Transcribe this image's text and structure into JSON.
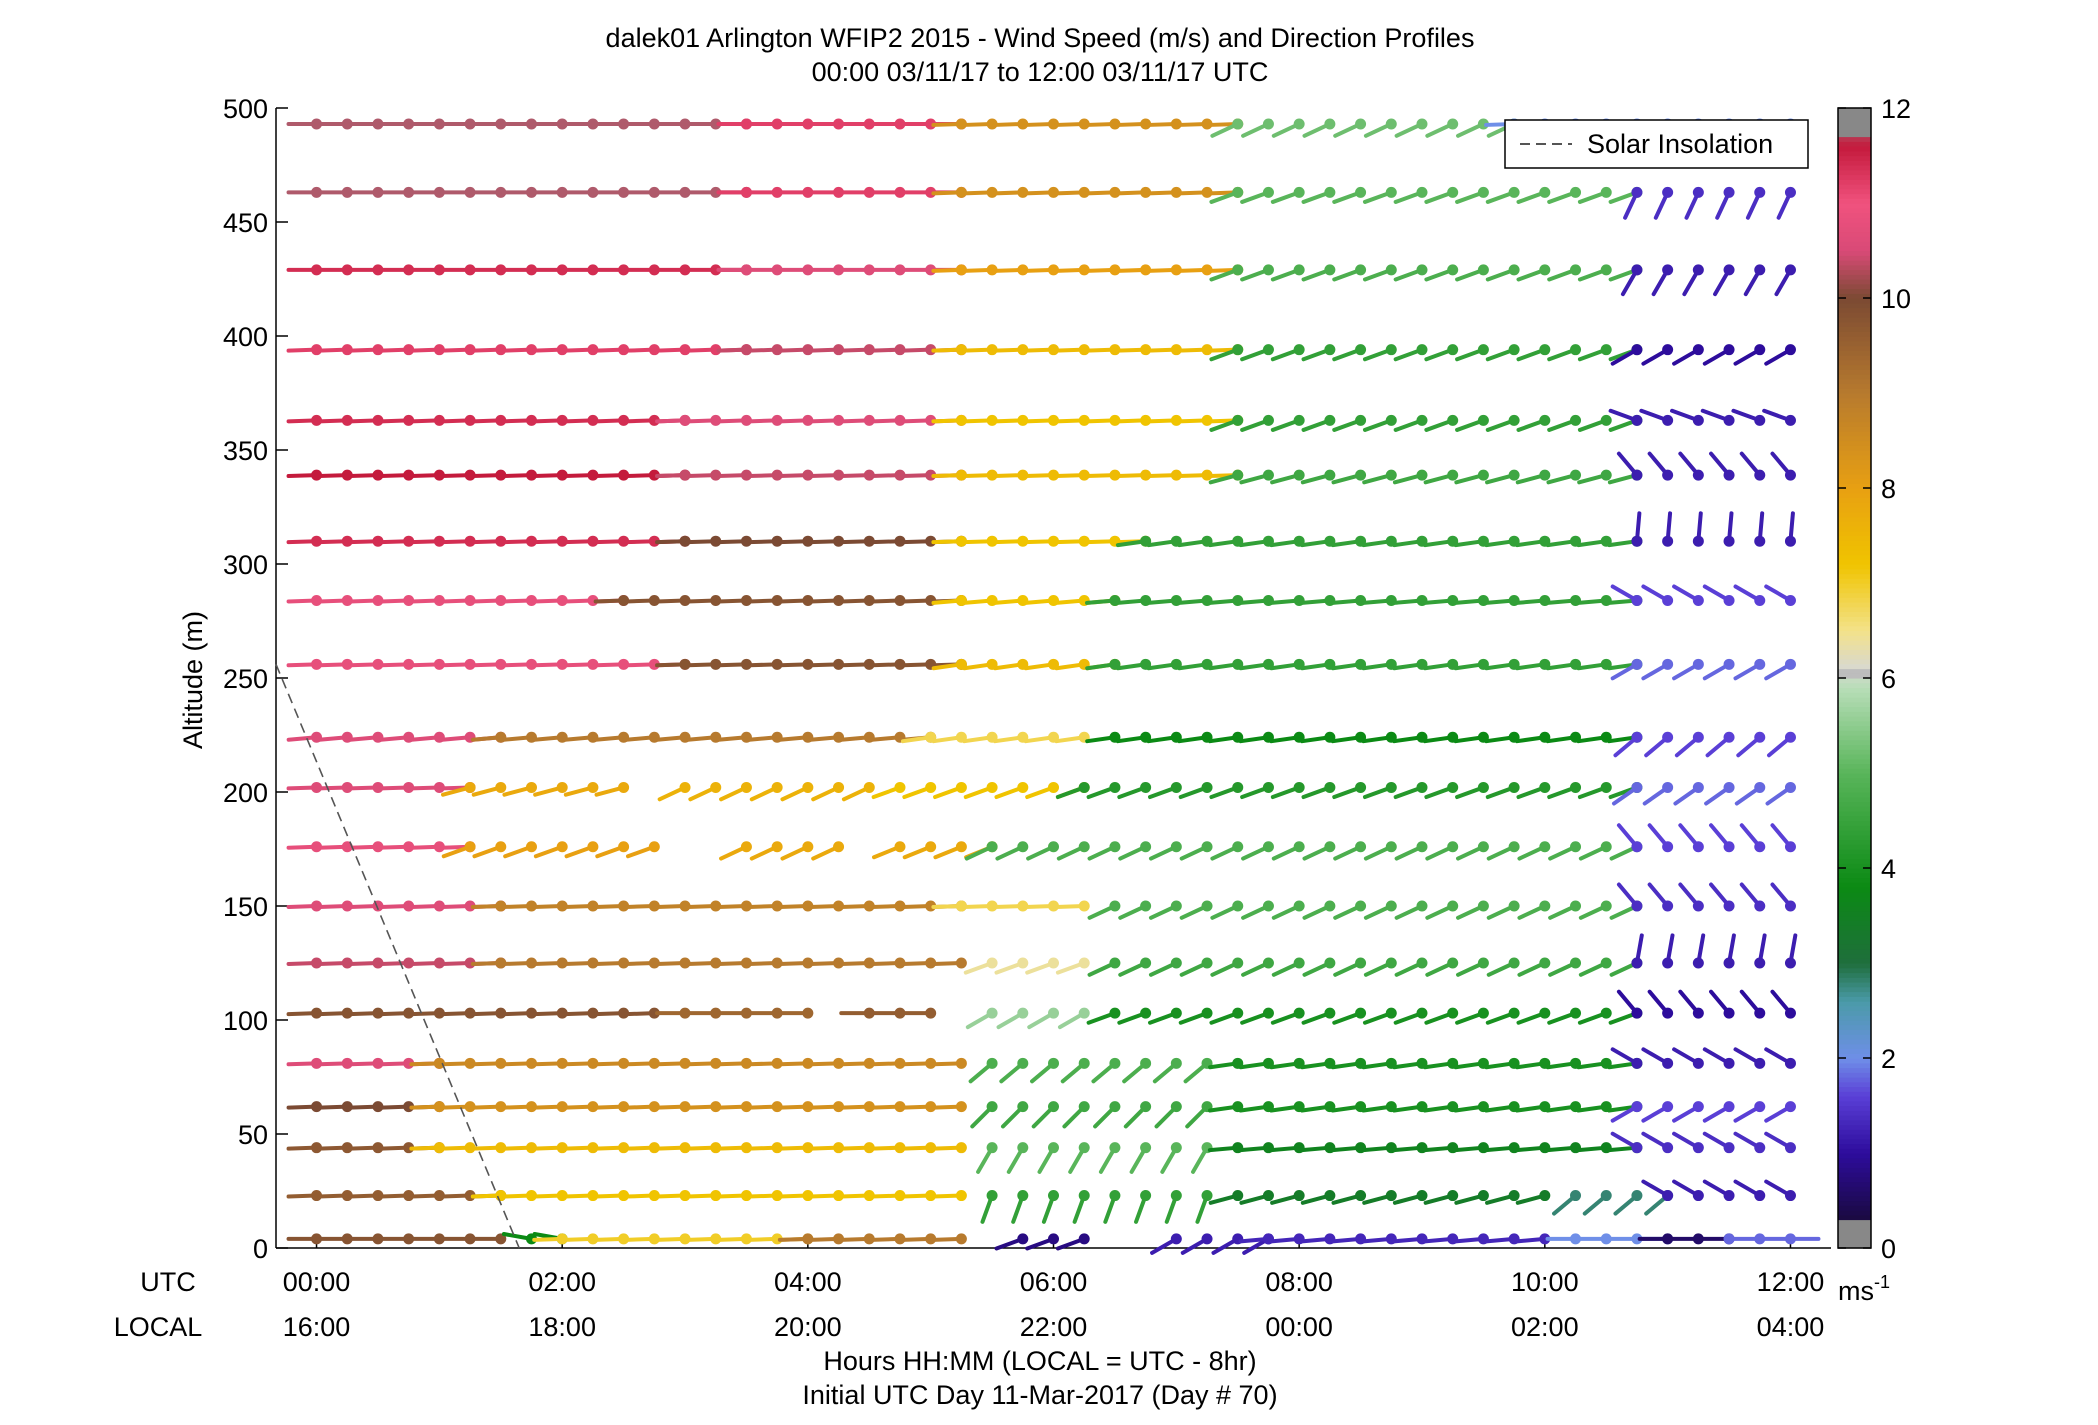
{
  "chart_data": {
    "type": "scatter",
    "title": "dalek01 Arlington WFIP2 2015 - Wind Speed (m/s) and Direction Profiles",
    "subtitle": "00:00 03/11/17 to 12:00 03/11/17  UTC",
    "ylabel": "Altitude (m)",
    "xlabel": "Hours HH:MM  (LOCAL = UTC - 8hr)",
    "xlabel2": "Initial UTC Day 11-Mar-2017 (Day # 70)",
    "x_row_labels": [
      "UTC",
      "LOCAL"
    ],
    "xlim_hours": [
      -0.33,
      12.33
    ],
    "ylim": [
      0,
      500
    ],
    "y_ticks": [
      0,
      50,
      100,
      150,
      200,
      250,
      300,
      350,
      400,
      450,
      500
    ],
    "x_ticks_hours": [
      0,
      2,
      4,
      6,
      8,
      10,
      12
    ],
    "x_ticks_utc": [
      "00:00",
      "02:00",
      "04:00",
      "06:00",
      "08:00",
      "10:00",
      "12:00"
    ],
    "x_ticks_local": [
      "16:00",
      "18:00",
      "20:00",
      "22:00",
      "00:00",
      "02:00",
      "04:00"
    ],
    "legend": {
      "label": "Solar Insolation",
      "position": "top-right"
    },
    "colorbar": {
      "label": "ms",
      "label_exponent": "-1",
      "ticks": [
        "0",
        "2",
        "4",
        "6",
        "8",
        "10",
        "12"
      ],
      "range": [
        0,
        12
      ]
    },
    "solar_insolation_line": {
      "x_hours": [
        -0.33,
        1.65
      ],
      "y": [
        256,
        0
      ]
    },
    "altitudes": [
      4,
      23,
      44,
      62,
      81,
      103,
      125,
      150,
      176,
      202,
      224,
      256,
      284,
      310,
      339,
      363,
      394,
      429,
      463,
      493
    ],
    "time_step_hours": 0.25,
    "series_note": "Wind barbs: marker at (time, altitude), color = wind speed (m/s), tail = direction (deg)",
    "profiles": [
      {
        "altitude": 4,
        "segments": [
          {
            "start": 0.0,
            "end": 1.5,
            "speed": 9.8,
            "dir": 270
          },
          {
            "start": 1.75,
            "end": 2.0,
            "speed": 3.8,
            "dir": 280
          },
          {
            "start": 2.0,
            "end": 4.0,
            "speed": 7.0,
            "dir": 268
          },
          {
            "start": 4.0,
            "end": 5.25,
            "speed": 9.0,
            "dir": 268
          },
          {
            "start": 5.75,
            "end": 6.25,
            "speed": 0.8,
            "dir": 250
          },
          {
            "start": 7.0,
            "end": 7.75,
            "speed": 1.2,
            "dir": 240
          },
          {
            "start": 7.75,
            "end": 10.0,
            "speed": 1.3,
            "dir": 265
          },
          {
            "start": 10.25,
            "end": 11.0,
            "speed": 2.0,
            "dir": 270
          },
          {
            "start": 11.0,
            "end": 11.5,
            "speed": 0.6,
            "dir": 270
          },
          {
            "start": 11.5,
            "end": 12.0,
            "speed": 1.8,
            "dir": 90
          }
        ]
      },
      {
        "altitude": 23,
        "segments": [
          {
            "start": 0.0,
            "end": 1.5,
            "speed": 9.6,
            "dir": 268
          },
          {
            "start": 1.5,
            "end": 5.25,
            "speed": 7.2,
            "dir": 268
          },
          {
            "start": 5.5,
            "end": 7.25,
            "speed": 4.4,
            "dir": 200
          },
          {
            "start": 7.5,
            "end": 10.0,
            "speed": 3.4,
            "dir": 255
          },
          {
            "start": 10.25,
            "end": 11.0,
            "speed": 2.8,
            "dir": 230
          },
          {
            "start": 11.0,
            "end": 12.0,
            "speed": 1.2,
            "dir": 300
          }
        ]
      },
      {
        "altitude": 44,
        "segments": [
          {
            "start": 0.0,
            "end": 1.0,
            "speed": 9.7,
            "dir": 268
          },
          {
            "start": 1.0,
            "end": 5.25,
            "speed": 7.4,
            "dir": 268
          },
          {
            "start": 5.5,
            "end": 7.25,
            "speed": 5.0,
            "dir": 210
          },
          {
            "start": 7.5,
            "end": 10.75,
            "speed": 3.6,
            "dir": 265
          },
          {
            "start": 10.75,
            "end": 12.0,
            "speed": 1.4,
            "dir": 300
          }
        ]
      },
      {
        "altitude": 62,
        "segments": [
          {
            "start": 0.0,
            "end": 1.0,
            "speed": 10.0,
            "dir": 268
          },
          {
            "start": 1.0,
            "end": 5.25,
            "speed": 8.4,
            "dir": 268
          },
          {
            "start": 5.5,
            "end": 7.25,
            "speed": 4.6,
            "dir": 225
          },
          {
            "start": 7.5,
            "end": 10.75,
            "speed": 4.0,
            "dir": 262
          },
          {
            "start": 10.75,
            "end": 12.0,
            "speed": 1.6,
            "dir": 240
          }
        ]
      },
      {
        "altitude": 81,
        "segments": [
          {
            "start": 0.0,
            "end": 1.0,
            "speed": 10.6,
            "dir": 268
          },
          {
            "start": 1.0,
            "end": 5.25,
            "speed": 8.6,
            "dir": 268
          },
          {
            "start": 5.5,
            "end": 7.25,
            "speed": 4.8,
            "dir": 230
          },
          {
            "start": 7.5,
            "end": 10.75,
            "speed": 4.0,
            "dir": 262
          },
          {
            "start": 10.75,
            "end": 12.0,
            "speed": 1.2,
            "dir": 300
          }
        ]
      },
      {
        "altitude": 103,
        "segments": [
          {
            "start": 0.0,
            "end": 2.75,
            "speed": 9.8,
            "dir": 268
          },
          {
            "start": 3.0,
            "end": 3.5,
            "speed": 9.4,
            "dir": 270
          },
          {
            "start": 3.75,
            "end": 4.0,
            "speed": 9.4,
            "dir": 270
          },
          {
            "start": 4.5,
            "end": 5.0,
            "speed": 9.6,
            "dir": 270
          },
          {
            "start": 5.5,
            "end": 6.25,
            "speed": 5.6,
            "dir": 240
          },
          {
            "start": 6.5,
            "end": 10.75,
            "speed": 4.0,
            "dir": 250
          },
          {
            "start": 10.75,
            "end": 12.0,
            "speed": 1.0,
            "dir": 320
          }
        ]
      },
      {
        "altitude": 125,
        "segments": [
          {
            "start": 0.0,
            "end": 1.5,
            "speed": 10.4,
            "dir": 268
          },
          {
            "start": 1.5,
            "end": 5.25,
            "speed": 9.0,
            "dir": 268
          },
          {
            "start": 5.5,
            "end": 6.25,
            "speed": 6.4,
            "dir": 250
          },
          {
            "start": 6.5,
            "end": 10.75,
            "speed": 4.6,
            "dir": 245
          },
          {
            "start": 10.75,
            "end": 12.0,
            "speed": 1.2,
            "dir": 10
          }
        ]
      },
      {
        "altitude": 150,
        "segments": [
          {
            "start": 0.0,
            "end": 1.5,
            "speed": 10.6,
            "dir": 268
          },
          {
            "start": 1.5,
            "end": 5.25,
            "speed": 8.8,
            "dir": 268
          },
          {
            "start": 5.25,
            "end": 6.25,
            "speed": 6.8,
            "dir": 268
          },
          {
            "start": 6.5,
            "end": 10.75,
            "speed": 4.8,
            "dir": 245
          },
          {
            "start": 10.75,
            "end": 12.0,
            "speed": 1.4,
            "dir": 320
          }
        ]
      },
      {
        "altitude": 176,
        "segments": [
          {
            "start": 0.0,
            "end": 1.25,
            "speed": 10.8,
            "dir": 268
          },
          {
            "start": 1.25,
            "end": 2.75,
            "speed": 8.0,
            "dir": 250
          },
          {
            "start": 3.5,
            "end": 4.25,
            "speed": 7.8,
            "dir": 245
          },
          {
            "start": 4.75,
            "end": 5.5,
            "speed": 7.8,
            "dir": 248
          },
          {
            "start": 5.5,
            "end": 10.75,
            "speed": 4.8,
            "dir": 245
          },
          {
            "start": 10.75,
            "end": 12.0,
            "speed": 1.6,
            "dir": 320
          }
        ]
      },
      {
        "altitude": 202,
        "segments": [
          {
            "start": 0.0,
            "end": 1.25,
            "speed": 10.6,
            "dir": 268
          },
          {
            "start": 1.25,
            "end": 2.5,
            "speed": 7.8,
            "dir": 255
          },
          {
            "start": 3.0,
            "end": 4.5,
            "speed": 7.6,
            "dir": 245
          },
          {
            "start": 4.75,
            "end": 6.25,
            "speed": 7.2,
            "dir": 250
          },
          {
            "start": 6.25,
            "end": 10.75,
            "speed": 4.2,
            "dir": 250
          },
          {
            "start": 10.75,
            "end": 12.0,
            "speed": 1.8,
            "dir": 235
          }
        ]
      },
      {
        "altitude": 224,
        "segments": [
          {
            "start": 0.0,
            "end": 1.5,
            "speed": 10.6,
            "dir": 265
          },
          {
            "start": 1.5,
            "end": 5.0,
            "speed": 9.0,
            "dir": 265
          },
          {
            "start": 5.0,
            "end": 6.25,
            "speed": 6.8,
            "dir": 262
          },
          {
            "start": 6.5,
            "end": 10.75,
            "speed": 3.8,
            "dir": 262
          },
          {
            "start": 10.75,
            "end": 12.0,
            "speed": 1.6,
            "dir": 230
          }
        ]
      },
      {
        "altitude": 256,
        "segments": [
          {
            "start": 0.0,
            "end": 3.0,
            "speed": 10.8,
            "dir": 268
          },
          {
            "start": 3.0,
            "end": 5.25,
            "speed": 9.8,
            "dir": 268
          },
          {
            "start": 5.25,
            "end": 6.5,
            "speed": 7.4,
            "dir": 262
          },
          {
            "start": 6.5,
            "end": 10.75,
            "speed": 4.4,
            "dir": 262
          },
          {
            "start": 10.75,
            "end": 12.0,
            "speed": 1.8,
            "dir": 240
          }
        ]
      },
      {
        "altitude": 284,
        "segments": [
          {
            "start": 0.0,
            "end": 2.5,
            "speed": 10.8,
            "dir": 268
          },
          {
            "start": 2.5,
            "end": 5.25,
            "speed": 9.8,
            "dir": 268
          },
          {
            "start": 5.25,
            "end": 6.5,
            "speed": 7.2,
            "dir": 265
          },
          {
            "start": 6.5,
            "end": 10.75,
            "speed": 4.4,
            "dir": 265
          },
          {
            "start": 10.75,
            "end": 12.0,
            "speed": 1.6,
            "dir": 300
          }
        ]
      },
      {
        "altitude": 310,
        "segments": [
          {
            "start": 0.0,
            "end": 3.0,
            "speed": 11.4,
            "dir": 268
          },
          {
            "start": 3.0,
            "end": 5.25,
            "speed": 10.0,
            "dir": 268
          },
          {
            "start": 5.25,
            "end": 6.75,
            "speed": 7.2,
            "dir": 268
          },
          {
            "start": 6.75,
            "end": 10.75,
            "speed": 4.4,
            "dir": 262
          },
          {
            "start": 10.75,
            "end": 12.0,
            "speed": 1.2,
            "dir": 5
          }
        ]
      },
      {
        "altitude": 339,
        "segments": [
          {
            "start": 0.0,
            "end": 3.0,
            "speed": 11.6,
            "dir": 268
          },
          {
            "start": 3.0,
            "end": 5.25,
            "speed": 10.4,
            "dir": 268
          },
          {
            "start": 5.25,
            "end": 7.5,
            "speed": 7.4,
            "dir": 268
          },
          {
            "start": 7.5,
            "end": 10.75,
            "speed": 4.6,
            "dir": 255
          },
          {
            "start": 10.75,
            "end": 12.0,
            "speed": 1.2,
            "dir": 320
          }
        ]
      },
      {
        "altitude": 363,
        "segments": [
          {
            "start": 0.0,
            "end": 3.0,
            "speed": 11.4,
            "dir": 268
          },
          {
            "start": 3.0,
            "end": 5.25,
            "speed": 10.6,
            "dir": 268
          },
          {
            "start": 5.25,
            "end": 7.5,
            "speed": 7.2,
            "dir": 268
          },
          {
            "start": 7.5,
            "end": 10.75,
            "speed": 4.4,
            "dir": 250
          },
          {
            "start": 10.75,
            "end": 12.0,
            "speed": 1.2,
            "dir": 290
          }
        ]
      },
      {
        "altitude": 394,
        "segments": [
          {
            "start": 0.0,
            "end": 3.5,
            "speed": 11.2,
            "dir": 268
          },
          {
            "start": 3.5,
            "end": 5.25,
            "speed": 10.4,
            "dir": 268
          },
          {
            "start": 5.25,
            "end": 7.5,
            "speed": 7.4,
            "dir": 268
          },
          {
            "start": 7.5,
            "end": 10.75,
            "speed": 4.4,
            "dir": 250
          },
          {
            "start": 10.75,
            "end": 12.0,
            "speed": 1.0,
            "dir": 240
          }
        ]
      },
      {
        "altitude": 429,
        "segments": [
          {
            "start": 0.0,
            "end": 3.5,
            "speed": 11.4,
            "dir": 270
          },
          {
            "start": 3.5,
            "end": 5.25,
            "speed": 10.6,
            "dir": 270
          },
          {
            "start": 5.25,
            "end": 7.5,
            "speed": 8.0,
            "dir": 268
          },
          {
            "start": 7.5,
            "end": 10.75,
            "speed": 4.8,
            "dir": 250
          },
          {
            "start": 10.75,
            "end": 12.0,
            "speed": 1.2,
            "dir": 210
          }
        ]
      },
      {
        "altitude": 463,
        "segments": [
          {
            "start": 0.0,
            "end": 3.5,
            "speed": 11.8,
            "dir": 270
          },
          {
            "start": 3.5,
            "end": 5.25,
            "speed": 11.2,
            "dir": 270
          },
          {
            "start": 5.25,
            "end": 7.5,
            "speed": 8.4,
            "dir": 268
          },
          {
            "start": 7.5,
            "end": 10.75,
            "speed": 5.0,
            "dir": 250
          },
          {
            "start": 10.75,
            "end": 12.0,
            "speed": 1.4,
            "dir": 205
          }
        ]
      },
      {
        "altitude": 493,
        "segments": [
          {
            "start": 0.0,
            "end": 3.5,
            "speed": 11.8,
            "dir": 270
          },
          {
            "start": 3.5,
            "end": 5.25,
            "speed": 11.2,
            "dir": 270
          },
          {
            "start": 5.25,
            "end": 7.5,
            "speed": 8.4,
            "dir": 268
          },
          {
            "start": 7.5,
            "end": 9.75,
            "speed": 5.2,
            "dir": 245
          },
          {
            "start": 9.75,
            "end": 12.0,
            "speed": 2.0,
            "dir": 268
          }
        ]
      }
    ],
    "colors": {
      "stops": [
        [
          0.0,
          "#6e6e6e"
        ],
        [
          0.3,
          "#1a0a40"
        ],
        [
          1.0,
          "#2d0c9c"
        ],
        [
          1.6,
          "#5a3fd6"
        ],
        [
          2.0,
          "#6f8fe8"
        ],
        [
          2.6,
          "#4a9aa8"
        ],
        [
          3.0,
          "#1f6e3c"
        ],
        [
          3.8,
          "#0b8a14"
        ],
        [
          5.0,
          "#59b55a"
        ],
        [
          5.9,
          "#b8deb8"
        ],
        [
          6.1,
          "#d8d8d0"
        ],
        [
          6.5,
          "#f3e28a"
        ],
        [
          7.2,
          "#f0c400"
        ],
        [
          8.0,
          "#e8a012"
        ],
        [
          9.0,
          "#b77a2e"
        ],
        [
          10.0,
          "#7b4a33"
        ],
        [
          10.5,
          "#d94a77"
        ],
        [
          11.0,
          "#f0527e"
        ],
        [
          11.6,
          "#c41a3c"
        ],
        [
          12.0,
          "#9a9a9a"
        ]
      ],
      "colorbar_segments": [
        [
          0.0,
          0.3,
          "#888888"
        ],
        [
          11.7,
          12.0,
          "#888888"
        ],
        [
          6.0,
          6.1,
          "#bdbdbd"
        ]
      ]
    }
  }
}
